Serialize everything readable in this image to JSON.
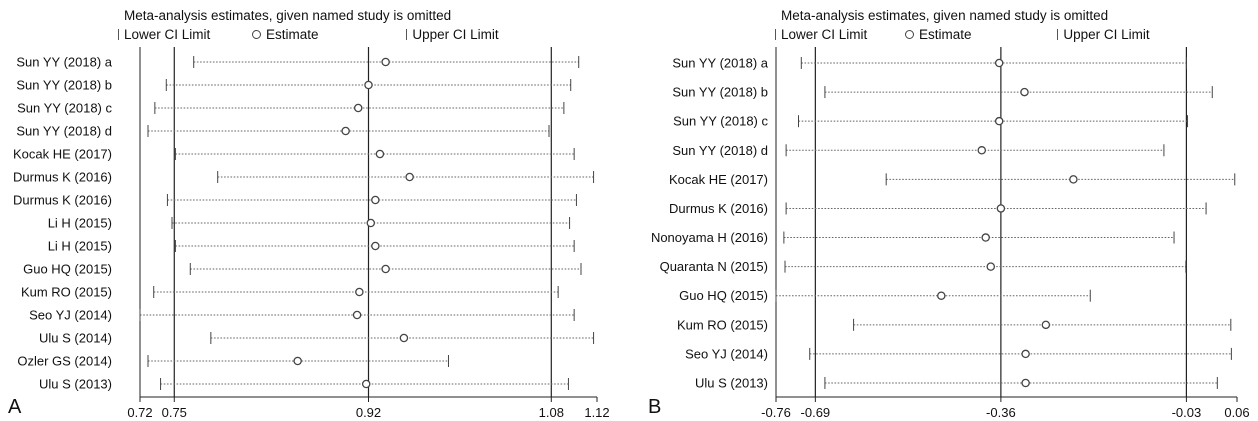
{
  "panels": [
    {
      "label": "A",
      "title": "Meta-analysis estimates, given named study is omitted",
      "legend": {
        "lower": "Lower CI Limit",
        "estimate": "Estimate",
        "upper": "Upper CI Limit"
      },
      "chart_data": {
        "type": "forest",
        "axis_ticks": [
          0.72,
          0.75,
          0.92,
          1.08,
          1.12
        ],
        "axis_tick_labels": [
          "0.72",
          "0.75",
          "0.92",
          "1.08",
          "1.12"
        ],
        "xlim": [
          0.72,
          1.12
        ],
        "reference_lines": [
          0.75,
          0.92,
          1.08
        ],
        "studies": [
          {
            "name": "Sun YY (2018) a",
            "lower": 0.767,
            "estimate": 0.935,
            "upper": 1.104
          },
          {
            "name": "Sun YY (2018) b",
            "lower": 0.743,
            "estimate": 0.92,
            "upper": 1.097
          },
          {
            "name": "Sun YY (2018) c",
            "lower": 0.733,
            "estimate": 0.911,
            "upper": 1.091
          },
          {
            "name": "Sun YY (2018) d",
            "lower": 0.727,
            "estimate": 0.9,
            "upper": 1.078
          },
          {
            "name": "Kocak HE (2017)",
            "lower": 0.751,
            "estimate": 0.93,
            "upper": 1.1
          },
          {
            "name": "Durmus K (2016)",
            "lower": 0.788,
            "estimate": 0.956,
            "upper": 1.117
          },
          {
            "name": "Durmus K (2016)",
            "lower": 0.744,
            "estimate": 0.926,
            "upper": 1.102
          },
          {
            "name": "Li H (2015)",
            "lower": 0.748,
            "estimate": 0.922,
            "upper": 1.096
          },
          {
            "name": "Li H (2015)",
            "lower": 0.751,
            "estimate": 0.926,
            "upper": 1.1
          },
          {
            "name": "Guo HQ (2015)",
            "lower": 0.764,
            "estimate": 0.935,
            "upper": 1.106
          },
          {
            "name": "Kum RO (2015)",
            "lower": 0.732,
            "estimate": 0.912,
            "upper": 1.086
          },
          {
            "name": "Seo YJ (2014)",
            "lower": 0.72,
            "estimate": 0.91,
            "upper": 1.1
          },
          {
            "name": "Ulu S (2014)",
            "lower": 0.782,
            "estimate": 0.951,
            "upper": 1.117
          },
          {
            "name": "Ozler GS (2014)",
            "lower": 0.727,
            "estimate": 0.858,
            "upper": 0.99
          },
          {
            "name": "Ulu S (2013)",
            "lower": 0.738,
            "estimate": 0.918,
            "upper": 1.095
          }
        ]
      }
    },
    {
      "label": "B",
      "title": "Meta-analysis estimates, given named study is omitted",
      "legend": {
        "lower": "Lower CI Limit",
        "estimate": "Estimate",
        "upper": "Upper CI Limit"
      },
      "chart_data": {
        "type": "forest",
        "axis_ticks": [
          -0.76,
          -0.69,
          -0.36,
          -0.03,
          0.06
        ],
        "axis_tick_labels": [
          "-0.76",
          "-0.69",
          "-0.36",
          "-0.03",
          "0.06"
        ],
        "xlim": [
          -0.76,
          0.06
        ],
        "reference_lines": [
          -0.69,
          -0.36,
          -0.03
        ],
        "studies": [
          {
            "name": "Sun YY (2018) a",
            "lower": -0.715,
            "estimate": -0.363,
            "upper": -0.03
          },
          {
            "name": "Sun YY (2018) b",
            "lower": -0.673,
            "estimate": -0.318,
            "upper": 0.016
          },
          {
            "name": "Sun YY (2018) c",
            "lower": -0.72,
            "estimate": -0.363,
            "upper": -0.028
          },
          {
            "name": "Sun YY (2018) d",
            "lower": -0.742,
            "estimate": -0.394,
            "upper": -0.07
          },
          {
            "name": "Kocak HE (2017)",
            "lower": -0.564,
            "estimate": -0.231,
            "upper": 0.056
          },
          {
            "name": "Durmus K (2016)",
            "lower": -0.742,
            "estimate": -0.36,
            "upper": 0.005
          },
          {
            "name": "Nonoyama H (2016)",
            "lower": -0.746,
            "estimate": -0.387,
            "upper": -0.052
          },
          {
            "name": "Quaranta N (2015)",
            "lower": -0.744,
            "estimate": -0.378,
            "upper": -0.031
          },
          {
            "name": "Guo HQ (2015)",
            "lower": -0.76,
            "estimate": -0.466,
            "upper": -0.201
          },
          {
            "name": "Kum RO (2015)",
            "lower": -0.622,
            "estimate": -0.28,
            "upper": 0.049
          },
          {
            "name": "Seo YJ (2014)",
            "lower": -0.7,
            "estimate": -0.316,
            "upper": 0.05
          },
          {
            "name": "Ulu S (2013)",
            "lower": -0.673,
            "estimate": -0.316,
            "upper": 0.025
          }
        ]
      }
    }
  ]
}
